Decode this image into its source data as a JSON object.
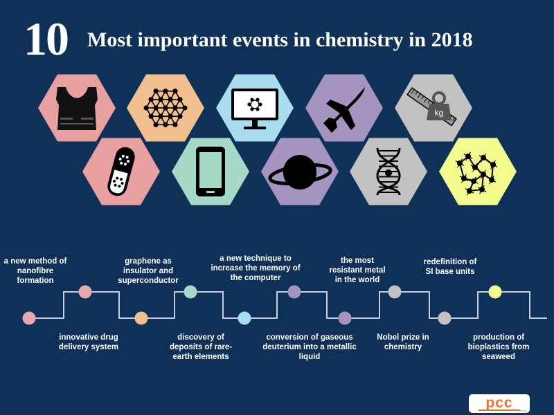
{
  "title": {
    "number": "10",
    "text": "Most important events in chemistry in 2018"
  },
  "icons": [
    {
      "name": "vest-icon",
      "color": "#e8a0a0"
    },
    {
      "name": "graphene-icon",
      "color": "#f2bf8f"
    },
    {
      "name": "computer-monitor-icon",
      "color": "#a9dcef"
    },
    {
      "name": "airplane-icon",
      "color": "#a694c0"
    },
    {
      "name": "ruler-weight-icon",
      "color": "#c2c2c2"
    },
    {
      "name": "pill-capsule-icon",
      "color": "#e8a0a0"
    },
    {
      "name": "smartphone-icon",
      "color": "#a7d9c7"
    },
    {
      "name": "planet-icon",
      "color": "#a694c0"
    },
    {
      "name": "dna-icon",
      "color": "#c2c2c2"
    },
    {
      "name": "molecule-network-icon",
      "color": "#f3fa8e"
    }
  ],
  "timeline": [
    {
      "label": "a new method of nanofibre formation",
      "color": "#e8a8b0"
    },
    {
      "label": "innovative drug delivery system",
      "color": "#e8a8b0"
    },
    {
      "label": "graphene as insulator and superconductor",
      "color": "#f2bf8f"
    },
    {
      "label": "discovery of deposits of rare-earth elements",
      "color": "#a7d9c7"
    },
    {
      "label": "a new technique to increase the memory of the computer",
      "color": "#a9dcef"
    },
    {
      "label": "conversion of gaseous deuterium into a metallic liquid",
      "color": "#a694c0"
    },
    {
      "label": "the most resistant metal in the world",
      "color": "#a694c0"
    },
    {
      "label": "Nobel prize in chemistry",
      "color": "#c2c2c2"
    },
    {
      "label": "redefinition of SI base units",
      "color": "#c2c2c2"
    },
    {
      "label": "production of bioplastics from seaweed",
      "color": "#f3fa8e"
    }
  ],
  "logo": {
    "text": "pcc",
    "sub": "Group"
  }
}
